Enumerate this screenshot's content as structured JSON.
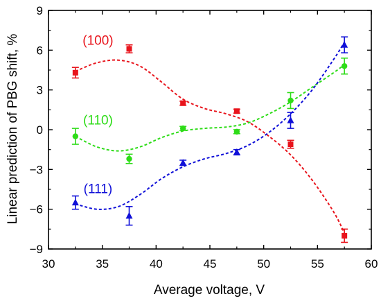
{
  "chart_data": {
    "type": "scatter",
    "xlabel": "Average voltage, V",
    "ylabel": "Linear prediction of PBG shift, %",
    "xlim": [
      30,
      60
    ],
    "ylim": [
      -9,
      9
    ],
    "xticks": [
      30,
      35,
      40,
      45,
      50,
      55,
      60
    ],
    "yticks": [
      -9,
      -6,
      -3,
      0,
      3,
      6,
      9
    ],
    "grid": false,
    "series": [
      {
        "name": "(100)",
        "color": "#e8141c",
        "marker": "square",
        "x": [
          32.5,
          37.5,
          42.5,
          47.5,
          52.5,
          57.5
        ],
        "y": [
          4.3,
          6.1,
          2.0,
          1.4,
          -1.1,
          -8.0
        ],
        "err": [
          0.4,
          0.3,
          0.15,
          0.15,
          0.3,
          0.5
        ],
        "fit": [
          [
            32.5,
            4.4
          ],
          [
            34.5,
            5.05
          ],
          [
            36.5,
            5.25
          ],
          [
            38.5,
            4.8
          ],
          [
            40.5,
            3.6
          ],
          [
            42.5,
            2.3
          ],
          [
            44.5,
            1.6
          ],
          [
            46.5,
            1.2
          ],
          [
            48.5,
            0.6
          ],
          [
            50.5,
            -0.5
          ],
          [
            52.5,
            -1.9
          ],
          [
            54.5,
            -3.8
          ],
          [
            56.5,
            -6.2
          ],
          [
            57.5,
            -7.8
          ]
        ]
      },
      {
        "name": "(110)",
        "color": "#2edc18",
        "marker": "circle",
        "x": [
          32.5,
          37.5,
          42.5,
          47.5,
          52.5,
          57.5
        ],
        "y": [
          -0.5,
          -2.2,
          0.1,
          -0.15,
          2.2,
          4.8
        ],
        "err": [
          0.6,
          0.35,
          0.15,
          0.15,
          0.6,
          0.6
        ],
        "fit": [
          [
            32.5,
            -0.5
          ],
          [
            34.5,
            -1.3
          ],
          [
            36.5,
            -1.6
          ],
          [
            38.5,
            -1.3
          ],
          [
            40.5,
            -0.6
          ],
          [
            42.5,
            -0.1
          ],
          [
            44.5,
            0.1
          ],
          [
            46.5,
            0.2
          ],
          [
            48.5,
            0.5
          ],
          [
            50.5,
            1.2
          ],
          [
            52.5,
            2.1
          ],
          [
            54.5,
            3.2
          ],
          [
            56.5,
            4.3
          ],
          [
            57.5,
            4.9
          ]
        ]
      },
      {
        "name": "(111)",
        "color": "#1010d8",
        "marker": "triangle",
        "x": [
          32.5,
          37.5,
          42.5,
          47.5,
          52.5,
          57.5
        ],
        "y": [
          -5.5,
          -6.5,
          -2.5,
          -1.7,
          0.7,
          6.4
        ],
        "err": [
          0.5,
          0.7,
          0.2,
          0.2,
          0.6,
          0.6
        ],
        "fit": [
          [
            32.5,
            -5.6
          ],
          [
            34.5,
            -6.0
          ],
          [
            36.5,
            -5.8
          ],
          [
            38.5,
            -4.9
          ],
          [
            40.5,
            -3.7
          ],
          [
            42.5,
            -2.8
          ],
          [
            44.5,
            -2.2
          ],
          [
            46.5,
            -1.8
          ],
          [
            48.5,
            -1.2
          ],
          [
            50.5,
            -0.2
          ],
          [
            52.5,
            1.2
          ],
          [
            54.5,
            3.0
          ],
          [
            56.5,
            5.3
          ],
          [
            57.5,
            6.6
          ]
        ]
      }
    ],
    "annotations": [
      {
        "text": "(100)",
        "x": 34.6,
        "y": 6.4,
        "color": "#e8141c"
      },
      {
        "text": "(110)",
        "x": 34.6,
        "y": 0.4,
        "color": "#2edc18"
      },
      {
        "text": "(111)",
        "x": 34.6,
        "y": -4.8,
        "color": "#1010d8"
      }
    ]
  }
}
